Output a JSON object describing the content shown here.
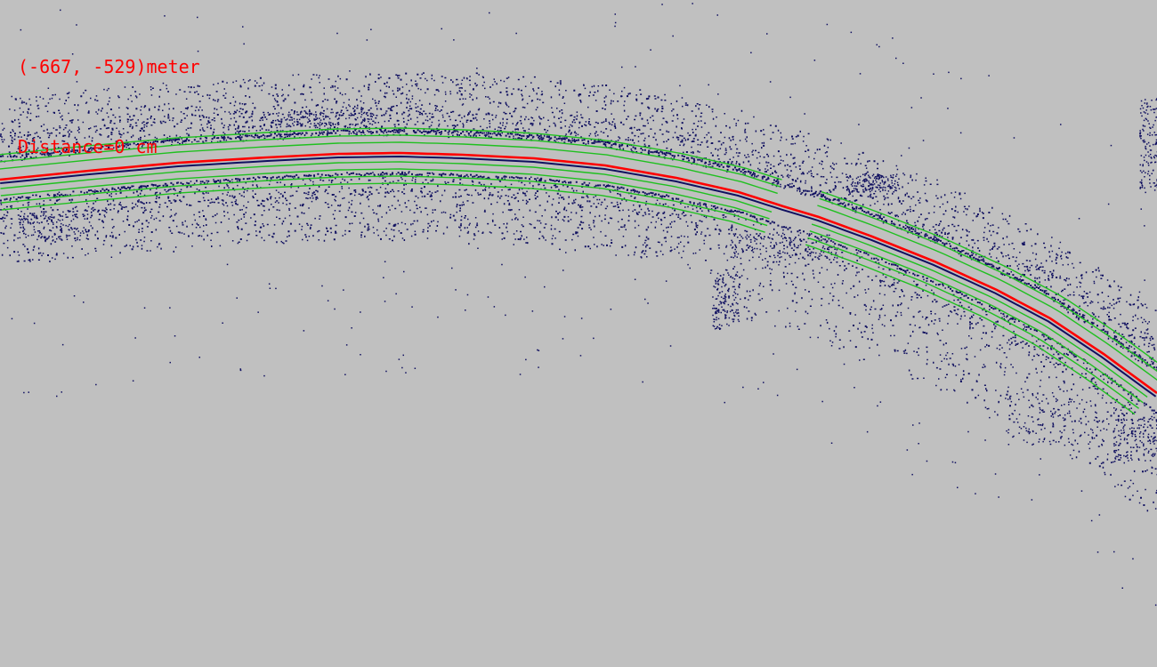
{
  "hud": {
    "coordinates": "(-667, -529)meter",
    "distance": "Distance=0 cm"
  },
  "colors": {
    "background": "#c0c0c0",
    "point_cloud": "#101060",
    "trajectory": "#ff0000",
    "lane_lines": "#20c020",
    "hud_text": "#ff0000"
  }
}
